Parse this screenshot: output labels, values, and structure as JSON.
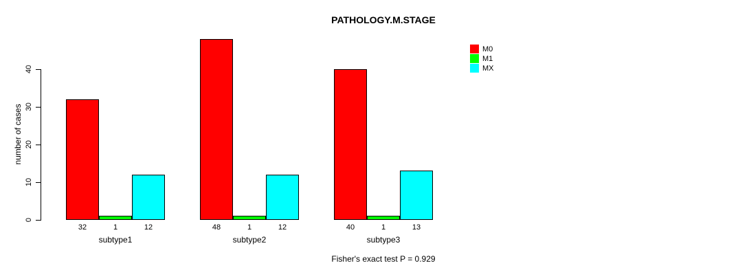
{
  "title": "PATHOLOGY.M.STAGE",
  "ylabel": "number of cases",
  "annotation": "Fisher's exact test P = 0.929",
  "chart_data": {
    "type": "bar",
    "categories": [
      "subtype1",
      "subtype2",
      "subtype3"
    ],
    "series": [
      {
        "name": "M0",
        "color": "#FF0000",
        "values": [
          32,
          48,
          40
        ]
      },
      {
        "name": "M1",
        "color": "#00FF00",
        "values": [
          1,
          1,
          1
        ]
      },
      {
        "name": "MX",
        "color": "#00FFFF",
        "values": [
          12,
          12,
          13
        ]
      }
    ],
    "title": "PATHOLOGY.M.STAGE",
    "xlabel": "",
    "ylabel": "number of cases",
    "ylim": [
      0,
      48
    ],
    "yticks": [
      0,
      10,
      20,
      30,
      40
    ],
    "grid": false,
    "legend_position": "right-of-plot",
    "bar_value_labels_shown": true,
    "annotation": "Fisher's exact test P = 0.929"
  }
}
